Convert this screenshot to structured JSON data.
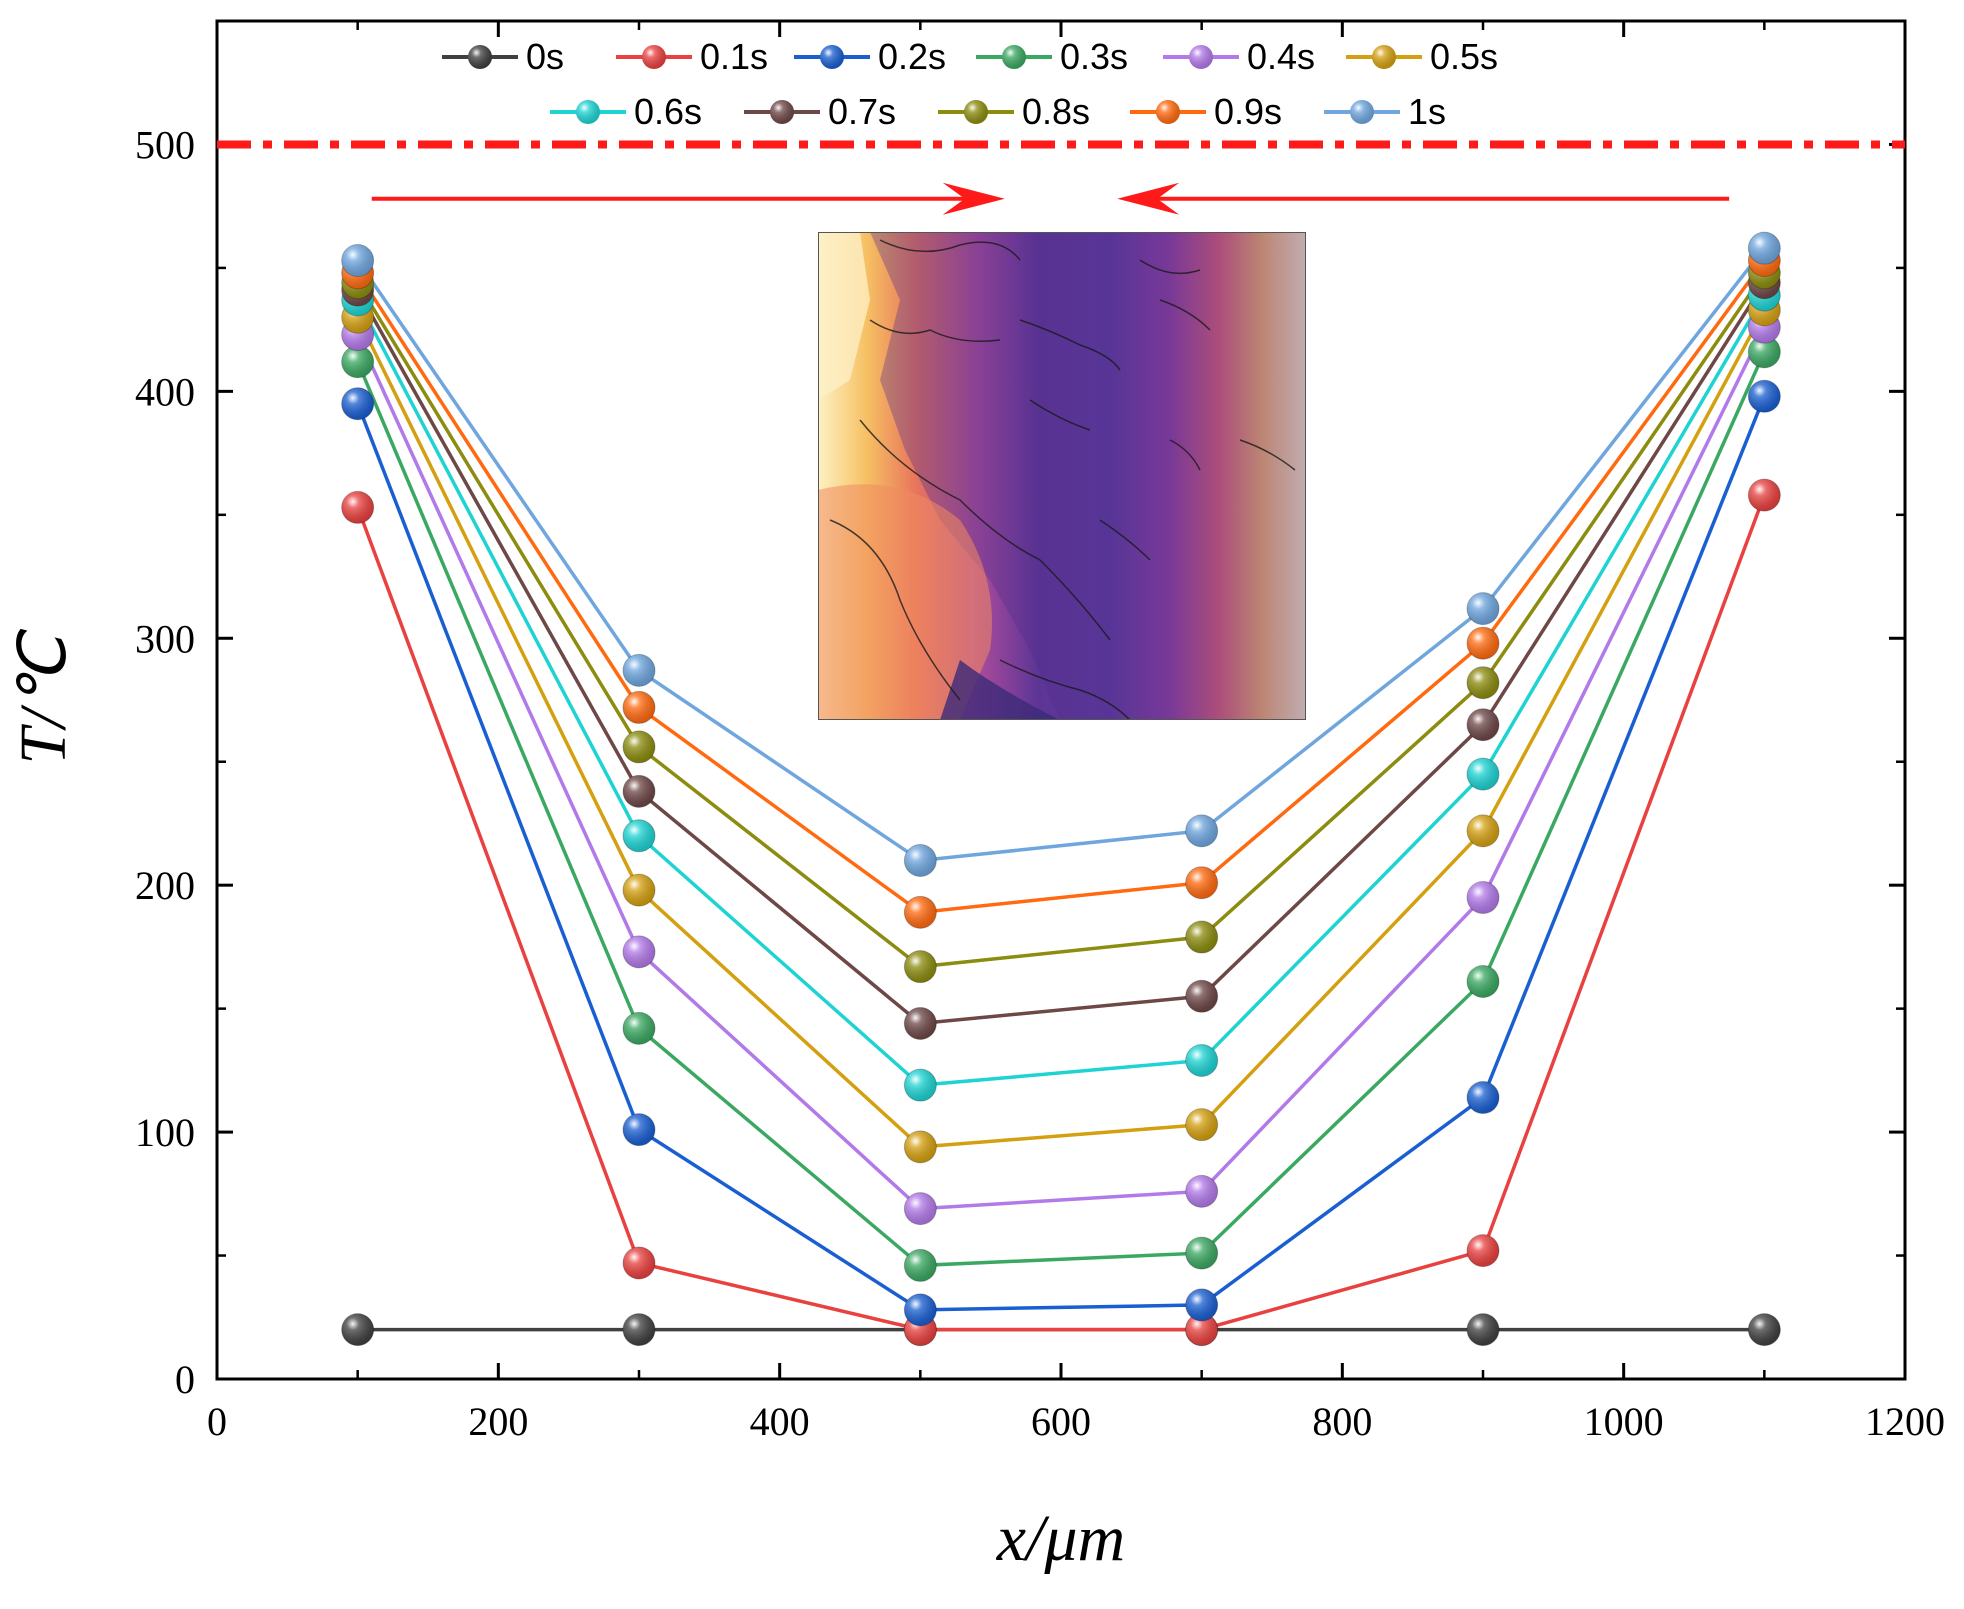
{
  "chart_data": {
    "type": "line",
    "title": "",
    "xlabel": "x/μm",
    "ylabel": "T/℃",
    "xlim": [
      0,
      1200
    ],
    "ylim": [
      0,
      550
    ],
    "x_ticks": [
      "0",
      "200",
      "400",
      "600",
      "800",
      "1000",
      "1200"
    ],
    "y_ticks": [
      "0",
      "100",
      "200",
      "300",
      "400",
      "500"
    ],
    "x": [
      100,
      300,
      500,
      700,
      900,
      1100
    ],
    "reference_line": {
      "y": 500,
      "color": "#ff1a1a",
      "style": "dash-dot"
    },
    "arrows": [
      {
        "from_x": 110,
        "to_x": 560,
        "y": 478,
        "color": "#ff1a1a"
      },
      {
        "from_x": 1075,
        "to_x": 640,
        "y": 478,
        "color": "#ff1a1a"
      }
    ],
    "inset": {
      "kind": "temperature field micrograph",
      "x_range": [
        420,
        770
      ],
      "y_range": [
        265,
        465
      ]
    },
    "legend_position": "top",
    "series": [
      {
        "name": "0s",
        "color": "#404040",
        "values": [
          20,
          20,
          20,
          20,
          20,
          20
        ]
      },
      {
        "name": "0.1s",
        "color": "#e8413f",
        "values": [
          353,
          47,
          20,
          20,
          52,
          358
        ]
      },
      {
        "name": "0.2s",
        "color": "#1a5fd1",
        "values": [
          395,
          101,
          28,
          30,
          114,
          398
        ]
      },
      {
        "name": "0.3s",
        "color": "#3ba862",
        "values": [
          412,
          142,
          46,
          51,
          161,
          416
        ]
      },
      {
        "name": "0.4s",
        "color": "#b279e8",
        "values": [
          423,
          173,
          69,
          76,
          195,
          426
        ]
      },
      {
        "name": "0.5s",
        "color": "#d4a012",
        "values": [
          430,
          198,
          94,
          103,
          222,
          433
        ]
      },
      {
        "name": "0.6s",
        "color": "#1fd3d3",
        "values": [
          437,
          220,
          119,
          129,
          245,
          439
        ]
      },
      {
        "name": "0.7s",
        "color": "#6e4747",
        "values": [
          441,
          238,
          144,
          155,
          265,
          444
        ]
      },
      {
        "name": "0.8s",
        "color": "#8c8c10",
        "values": [
          444,
          256,
          167,
          179,
          282,
          448
        ]
      },
      {
        "name": "0.9s",
        "color": "#ff6a10",
        "values": [
          448,
          272,
          189,
          201,
          298,
          453
        ]
      },
      {
        "name": "1s",
        "color": "#6fa6de",
        "values": [
          453,
          287,
          210,
          222,
          312,
          458
        ]
      }
    ]
  }
}
